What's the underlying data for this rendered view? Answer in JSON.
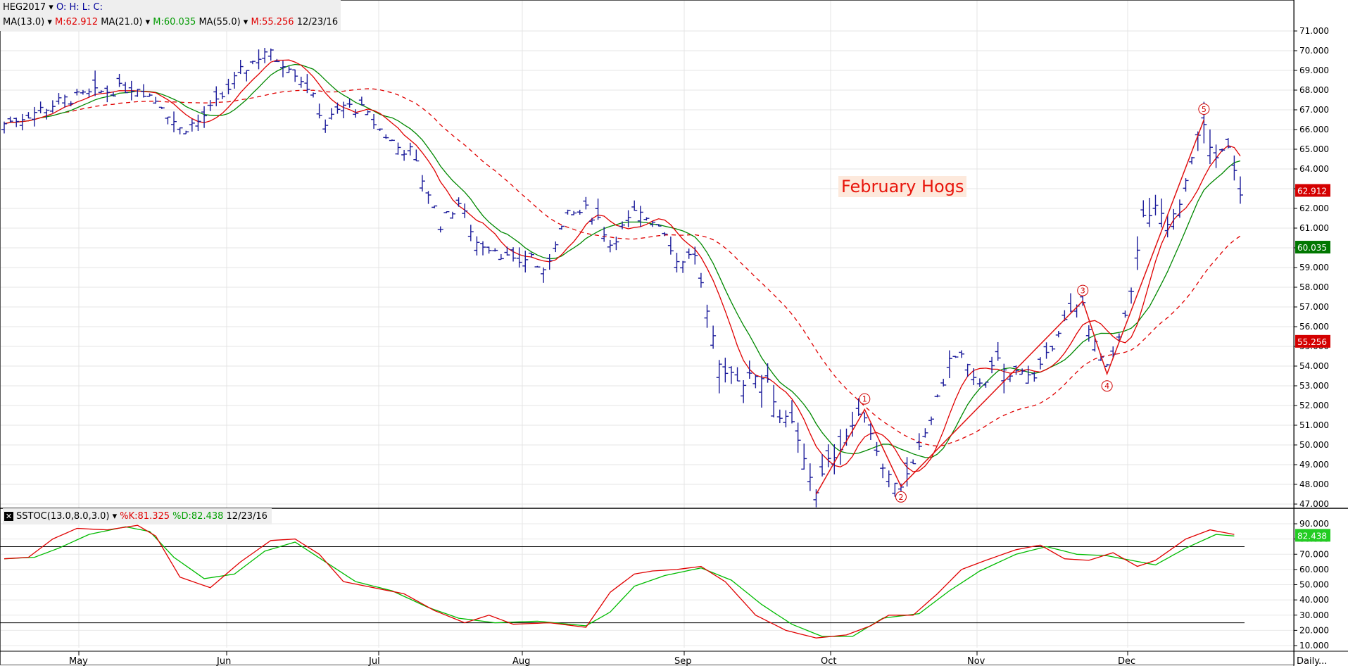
{
  "legend": {
    "symbol": "HEG2017",
    "ohlc": "O: H: L: C:",
    "ma13_label": "MA(13.0)",
    "ma13_value": "M:62.912",
    "ma21_label": "MA(21.0)",
    "ma21_value": "M:60.035",
    "ma55_label": "MA(55.0)",
    "ma55_value": "M:55.256",
    "date": "12/23/16"
  },
  "stoch_legend": {
    "close_symbol": "✕",
    "label": "SSTOC(13.0,8.0,3.0)",
    "k_value": "%K:81.325",
    "d_value": "%D:82.438",
    "date": "12/23/16"
  },
  "annotation": "February Hogs",
  "timeframe": "Daily...",
  "colors": {
    "bars": "#1a1a9a",
    "ma13": "#e00000",
    "ma21": "#008800",
    "ma55": "#e00000",
    "stoch_k": "#e00000",
    "stoch_d": "#00bb00",
    "tag_ma13": "#d40000",
    "tag_ma21": "#007700",
    "tag_ma55": "#d40000",
    "tag_d": "#22cc22"
  },
  "chart_data": [
    {
      "type": "ohlc",
      "title": "February Hogs",
      "symbol": "HEG2017",
      "x_months": [
        "May",
        "Jun",
        "Jul",
        "Aug",
        "Sep",
        "Oct",
        "Nov",
        "Dec"
      ],
      "ylim": [
        46.5,
        71.5
      ],
      "y_ticks": [
        "47.000",
        "48.000",
        "49.000",
        "50.000",
        "51.000",
        "52.000",
        "53.000",
        "54.000",
        "55.000",
        "56.000",
        "57.000",
        "58.000",
        "59.000",
        "60.000",
        "61.000",
        "62.000",
        "63.000",
        "64.000",
        "65.000",
        "66.000",
        "67.000",
        "68.000",
        "69.000",
        "70.000",
        "71.000"
      ],
      "price_tags": [
        "62.912",
        "60.035",
        "55.256"
      ],
      "price_path": [
        {
          "d": 0,
          "p": 66.3
        },
        {
          "d": 10,
          "p": 66.9
        },
        {
          "d": 20,
          "p": 67.5
        },
        {
          "d": 32,
          "p": 67.9
        },
        {
          "d": 44,
          "p": 68.2
        },
        {
          "d": 52,
          "p": 67.3
        },
        {
          "d": 58,
          "p": 66.0
        },
        {
          "d": 64,
          "p": 66.4
        },
        {
          "d": 70,
          "p": 67.3
        },
        {
          "d": 78,
          "p": 68.9
        },
        {
          "d": 86,
          "p": 70.0
        },
        {
          "d": 90,
          "p": 69.6
        },
        {
          "d": 94,
          "p": 69.3
        },
        {
          "d": 100,
          "p": 68.2
        },
        {
          "d": 106,
          "p": 66.3
        },
        {
          "d": 112,
          "p": 67.2
        },
        {
          "d": 118,
          "p": 67.0
        },
        {
          "d": 124,
          "p": 66.0
        },
        {
          "d": 130,
          "p": 65.1
        },
        {
          "d": 134,
          "p": 64.9
        },
        {
          "d": 140,
          "p": 62.8
        },
        {
          "d": 144,
          "p": 61.2
        },
        {
          "d": 150,
          "p": 62.3
        },
        {
          "d": 156,
          "p": 60.3
        },
        {
          "d": 162,
          "p": 60.0
        },
        {
          "d": 168,
          "p": 59.2
        },
        {
          "d": 174,
          "p": 59.6
        },
        {
          "d": 178,
          "p": 58.6
        },
        {
          "d": 182,
          "p": 60.4
        },
        {
          "d": 186,
          "p": 61.6
        },
        {
          "d": 192,
          "p": 61.9
        },
        {
          "d": 196,
          "p": 61.5
        },
        {
          "d": 200,
          "p": 60.2
        },
        {
          "d": 204,
          "p": 61.0
        },
        {
          "d": 208,
          "p": 61.7
        },
        {
          "d": 214,
          "p": 61.5
        },
        {
          "d": 218,
          "p": 60.9
        },
        {
          "d": 222,
          "p": 59.3
        },
        {
          "d": 228,
          "p": 59.7
        },
        {
          "d": 232,
          "p": 56.5
        },
        {
          "d": 236,
          "p": 54.0
        },
        {
          "d": 240,
          "p": 53.7
        },
        {
          "d": 244,
          "p": 53.2
        },
        {
          "d": 248,
          "p": 53.6
        },
        {
          "d": 252,
          "p": 53.4
        },
        {
          "d": 256,
          "p": 51.4
        },
        {
          "d": 260,
          "p": 51.0
        },
        {
          "d": 264,
          "p": 49.2
        },
        {
          "d": 268,
          "p": 47.7
        },
        {
          "d": 272,
          "p": 49.1
        },
        {
          "d": 276,
          "p": 50.0
        },
        {
          "d": 280,
          "p": 51.0
        },
        {
          "d": 284,
          "p": 51.6
        },
        {
          "d": 288,
          "p": 49.8
        },
        {
          "d": 292,
          "p": 48.4
        },
        {
          "d": 296,
          "p": 48.0
        },
        {
          "d": 300,
          "p": 48.8
        },
        {
          "d": 304,
          "p": 50.6
        },
        {
          "d": 308,
          "p": 52.2
        },
        {
          "d": 312,
          "p": 54.3
        },
        {
          "d": 316,
          "p": 54.5
        },
        {
          "d": 320,
          "p": 53.2
        },
        {
          "d": 324,
          "p": 53.4
        },
        {
          "d": 328,
          "p": 54.2
        },
        {
          "d": 332,
          "p": 53.4
        },
        {
          "d": 336,
          "p": 54.0
        },
        {
          "d": 340,
          "p": 53.3
        },
        {
          "d": 344,
          "p": 54.4
        },
        {
          "d": 348,
          "p": 55.9
        },
        {
          "d": 352,
          "p": 56.6
        },
        {
          "d": 356,
          "p": 57.2
        },
        {
          "d": 360,
          "p": 55.0
        },
        {
          "d": 364,
          "p": 53.8
        },
        {
          "d": 368,
          "p": 55.2
        },
        {
          "d": 372,
          "p": 58.0
        },
        {
          "d": 376,
          "p": 61.5
        },
        {
          "d": 380,
          "p": 61.9
        },
        {
          "d": 384,
          "p": 61.2
        },
        {
          "d": 388,
          "p": 62.0
        },
        {
          "d": 392,
          "p": 64.8
        },
        {
          "d": 396,
          "p": 66.2
        },
        {
          "d": 400,
          "p": 64.3
        },
        {
          "d": 404,
          "p": 65.3
        },
        {
          "d": 408,
          "p": 62.9
        }
      ]
    },
    {
      "type": "line",
      "title": "SSTOC(13.0,8.0,3.0)",
      "ylim": [
        5,
        95
      ],
      "y_ticks": [
        "10.000",
        "20.000",
        "30.000",
        "40.000",
        "50.000",
        "60.000",
        "70.000",
        "80.000",
        "90.000"
      ],
      "reference_lines": [
        75,
        25
      ],
      "value_tag": "82.438",
      "series": [
        {
          "name": "%K",
          "values": [
            {
              "d": 0,
              "v": 67
            },
            {
              "d": 8,
              "v": 68
            },
            {
              "d": 16,
              "v": 80
            },
            {
              "d": 24,
              "v": 87
            },
            {
              "d": 34,
              "v": 86
            },
            {
              "d": 44,
              "v": 89
            },
            {
              "d": 50,
              "v": 82
            },
            {
              "d": 58,
              "v": 55
            },
            {
              "d": 68,
              "v": 48
            },
            {
              "d": 78,
              "v": 65
            },
            {
              "d": 88,
              "v": 79
            },
            {
              "d": 96,
              "v": 80
            },
            {
              "d": 104,
              "v": 70
            },
            {
              "d": 112,
              "v": 52
            },
            {
              "d": 122,
              "v": 48
            },
            {
              "d": 132,
              "v": 44
            },
            {
              "d": 142,
              "v": 33
            },
            {
              "d": 152,
              "v": 25
            },
            {
              "d": 160,
              "v": 30
            },
            {
              "d": 168,
              "v": 24
            },
            {
              "d": 180,
              "v": 25
            },
            {
              "d": 192,
              "v": 22
            },
            {
              "d": 200,
              "v": 45
            },
            {
              "d": 208,
              "v": 57
            },
            {
              "d": 214,
              "v": 59
            },
            {
              "d": 222,
              "v": 60
            },
            {
              "d": 230,
              "v": 62
            },
            {
              "d": 238,
              "v": 52
            },
            {
              "d": 248,
              "v": 30
            },
            {
              "d": 258,
              "v": 20
            },
            {
              "d": 268,
              "v": 15
            },
            {
              "d": 278,
              "v": 17
            },
            {
              "d": 286,
              "v": 23
            },
            {
              "d": 292,
              "v": 30
            },
            {
              "d": 300,
              "v": 30
            },
            {
              "d": 308,
              "v": 44
            },
            {
              "d": 316,
              "v": 60
            },
            {
              "d": 324,
              "v": 66
            },
            {
              "d": 334,
              "v": 73
            },
            {
              "d": 342,
              "v": 76
            },
            {
              "d": 350,
              "v": 67
            },
            {
              "d": 358,
              "v": 66
            },
            {
              "d": 366,
              "v": 71
            },
            {
              "d": 374,
              "v": 62
            },
            {
              "d": 380,
              "v": 66
            },
            {
              "d": 390,
              "v": 80
            },
            {
              "d": 398,
              "v": 86
            },
            {
              "d": 406,
              "v": 83
            }
          ]
        },
        {
          "name": "%D",
          "values": [
            {
              "d": 0,
              "v": 67
            },
            {
              "d": 10,
              "v": 68
            },
            {
              "d": 18,
              "v": 74
            },
            {
              "d": 28,
              "v": 83
            },
            {
              "d": 40,
              "v": 88
            },
            {
              "d": 48,
              "v": 85
            },
            {
              "d": 56,
              "v": 68
            },
            {
              "d": 66,
              "v": 54
            },
            {
              "d": 76,
              "v": 57
            },
            {
              "d": 86,
              "v": 72
            },
            {
              "d": 96,
              "v": 78
            },
            {
              "d": 106,
              "v": 65
            },
            {
              "d": 116,
              "v": 52
            },
            {
              "d": 128,
              "v": 46
            },
            {
              "d": 140,
              "v": 35
            },
            {
              "d": 150,
              "v": 28
            },
            {
              "d": 162,
              "v": 25
            },
            {
              "d": 176,
              "v": 26
            },
            {
              "d": 192,
              "v": 23
            },
            {
              "d": 200,
              "v": 32
            },
            {
              "d": 208,
              "v": 49
            },
            {
              "d": 218,
              "v": 56
            },
            {
              "d": 230,
              "v": 61
            },
            {
              "d": 240,
              "v": 53
            },
            {
              "d": 250,
              "v": 37
            },
            {
              "d": 260,
              "v": 24
            },
            {
              "d": 270,
              "v": 16
            },
            {
              "d": 280,
              "v": 16
            },
            {
              "d": 290,
              "v": 28
            },
            {
              "d": 302,
              "v": 31
            },
            {
              "d": 312,
              "v": 46
            },
            {
              "d": 322,
              "v": 59
            },
            {
              "d": 334,
              "v": 70
            },
            {
              "d": 344,
              "v": 75
            },
            {
              "d": 354,
              "v": 70
            },
            {
              "d": 364,
              "v": 69
            },
            {
              "d": 372,
              "v": 66
            },
            {
              "d": 380,
              "v": 63
            },
            {
              "d": 390,
              "v": 74
            },
            {
              "d": 400,
              "v": 83
            },
            {
              "d": 406,
              "v": 82
            }
          ]
        }
      ]
    }
  ],
  "wave_labels": [
    "1",
    "2",
    "3",
    "4",
    "5"
  ]
}
